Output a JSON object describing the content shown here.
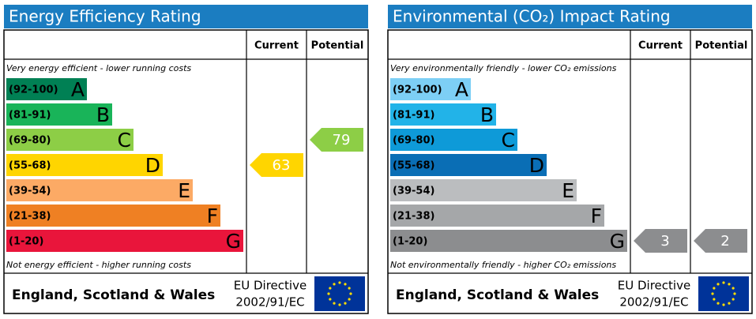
{
  "panels": [
    {
      "title": "Energy Efficiency Rating",
      "columns": [
        "Current",
        "Potential"
      ],
      "top_note": "Very energy efficient - lower running costs",
      "bottom_note": "Not energy efficient - higher running costs",
      "bands": [
        {
          "range": "(92-100)",
          "letter": "A",
          "color": "#008054"
        },
        {
          "range": "(81-91)",
          "letter": "B",
          "color": "#19b459"
        },
        {
          "range": "(69-80)",
          "letter": "C",
          "color": "#8dce46"
        },
        {
          "range": "(55-68)",
          "letter": "D",
          "color": "#ffd500"
        },
        {
          "range": "(39-54)",
          "letter": "E",
          "color": "#fcaa65"
        },
        {
          "range": "(21-38)",
          "letter": "F",
          "color": "#ef8023"
        },
        {
          "range": "(1-20)",
          "letter": "G",
          "color": "#e9153b"
        }
      ],
      "current": 63,
      "potential": 79,
      "footer": {
        "region": "England, Scotland & Wales",
        "directive": "EU Directive",
        "code": "2002/91/EC"
      }
    },
    {
      "title": "Environmental (CO₂) Impact Rating",
      "columns": [
        "Current",
        "Potential"
      ],
      "top_note": "Very environmentally friendly - lower CO₂ emissions",
      "bottom_note": "Not environmentally friendly - higher CO₂ emissions",
      "bands": [
        {
          "range": "(92-100)",
          "letter": "A",
          "color": "#7dcff5"
        },
        {
          "range": "(81-91)",
          "letter": "B",
          "color": "#22b3e8"
        },
        {
          "range": "(69-80)",
          "letter": "C",
          "color": "#0e9ad8"
        },
        {
          "range": "(55-68)",
          "letter": "D",
          "color": "#0a6eb5"
        },
        {
          "range": "(39-54)",
          "letter": "E",
          "color": "#bbbdbf"
        },
        {
          "range": "(21-38)",
          "letter": "F",
          "color": "#a5a7a9"
        },
        {
          "range": "(1-20)",
          "letter": "G",
          "color": "#8c8d8f"
        }
      ],
      "current": 3,
      "potential": 2,
      "footer": {
        "region": "England, Scotland & Wales",
        "directive": "EU Directive",
        "code": "2002/91/EC"
      }
    }
  ]
}
